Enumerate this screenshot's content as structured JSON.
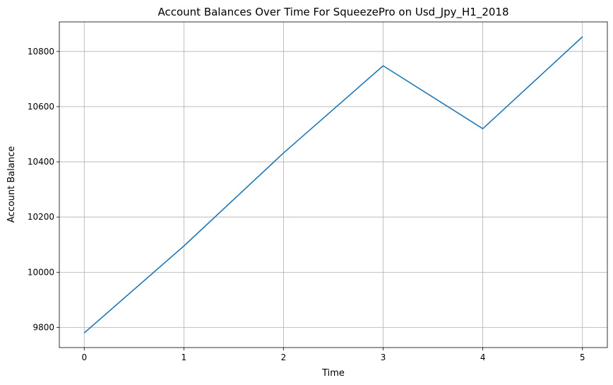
{
  "chart_data": {
    "type": "line",
    "title": "Account Balances Over Time For SqueezePro on Usd_Jpy_H1_2018",
    "xlabel": "Time",
    "ylabel": "Account Balance",
    "x": [
      0,
      1,
      2,
      3,
      4,
      5
    ],
    "series": [
      {
        "values": [
          9780,
          10095,
          10432,
          10748,
          10520,
          10853
        ]
      }
    ],
    "xlim": [
      -0.25,
      5.25
    ],
    "ylim": [
      9727,
      10907
    ],
    "xticks": [
      0,
      1,
      2,
      3,
      4,
      5
    ],
    "yticks": [
      9800,
      10000,
      10200,
      10400,
      10600,
      10800
    ],
    "grid": true,
    "line_color": "#1f77b4",
    "grid_color": "#b0b0b0"
  }
}
